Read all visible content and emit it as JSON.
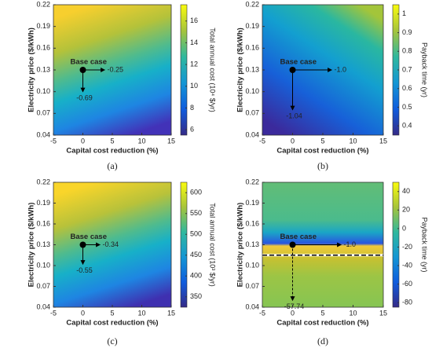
{
  "chart_data": [
    {
      "type": "contour",
      "caption": "(a)",
      "xlabel": "Capital cost reduction (%)",
      "ylabel": "Electricity price ($/kWh)",
      "colorbar_label": "Total annual cost (10⁴ $/yr)",
      "xlim": [
        -5,
        15
      ],
      "xticks": [
        -5,
        0,
        5,
        10,
        15
      ],
      "ylim": [
        0.04,
        0.22
      ],
      "yticks": [
        0.04,
        0.07,
        {
          "value": 0.1,
          "label": "0.10"
        },
        0.13,
        0.16,
        0.19,
        0.22
      ],
      "clim": [
        5.5,
        17.5
      ],
      "cticks": [
        6,
        8,
        10,
        12,
        14,
        16
      ],
      "base_point": {
        "x": 0,
        "y": 0.13,
        "label": "Base case"
      },
      "h_value": -0.25,
      "v_value": -0.69
    },
    {
      "type": "contour",
      "caption": "(b)",
      "xlabel": "Capital cost reduction (%)",
      "ylabel": "Electricity price ($/kWh)",
      "colorbar_label": "Payback time (yr)",
      "xlim": [
        -5,
        15
      ],
      "xticks": [
        -5,
        0,
        5,
        10,
        15
      ],
      "ylim": [
        0.04,
        0.22
      ],
      "yticks": [
        0.04,
        0.07,
        {
          "value": 0.1,
          "label": "0.10"
        },
        0.13,
        0.16,
        0.19,
        0.22
      ],
      "clim": [
        0.35,
        1.05
      ],
      "cticks": [
        0.4,
        0.5,
        0.6,
        0.7,
        0.8,
        0.9,
        {
          "value": 1,
          "label": "1"
        }
      ],
      "base_point": {
        "x": 0,
        "y": 0.13,
        "label": "Base case"
      },
      "h_value": {
        "value": -1.0,
        "label": "-1.0"
      },
      "v_value": -1.04
    },
    {
      "type": "contour",
      "caption": "(c)",
      "xlabel": "Capital cost reduction (%)",
      "ylabel": "Electricity price ($/kWh)",
      "colorbar_label": "Total annual cost (10³ $/yr)",
      "xlim": [
        -5,
        15
      ],
      "xticks": [
        -5,
        0,
        5,
        10,
        15
      ],
      "ylim": [
        0.04,
        0.22
      ],
      "yticks": [
        0.04,
        0.07,
        {
          "value": 0.1,
          "label": "0.10"
        },
        0.13,
        0.16,
        0.19,
        0.22
      ],
      "clim": [
        325,
        625
      ],
      "cticks": [
        350,
        400,
        450,
        500,
        550,
        600
      ],
      "base_point": {
        "x": 0,
        "y": 0.13,
        "label": "Base case"
      },
      "h_value": -0.34,
      "v_value": -0.55
    },
    {
      "type": "contour",
      "caption": "(d)",
      "xlabel": "Capital cost reduction (%)",
      "ylabel": "Electricity price ($/kWh)",
      "colorbar_label": "Payback time (yr)",
      "xlim": [
        -5,
        15
      ],
      "xticks": [
        -5,
        0,
        5,
        10,
        15
      ],
      "ylim": [
        0.04,
        0.22
      ],
      "yticks": [
        0.04,
        0.07,
        {
          "value": 0.1,
          "label": "0.10"
        },
        0.13,
        0.16,
        0.19,
        0.22
      ],
      "clim": [
        -85,
        50
      ],
      "cticks": [
        -80,
        -60,
        -40,
        -20,
        0,
        20,
        40
      ],
      "base_point": {
        "x": 0,
        "y": 0.13,
        "label": "Base case"
      },
      "h_value": {
        "value": -1.0,
        "label": "-1.0"
      },
      "v_value": -57.74,
      "boundary_y": 0.115
    }
  ]
}
